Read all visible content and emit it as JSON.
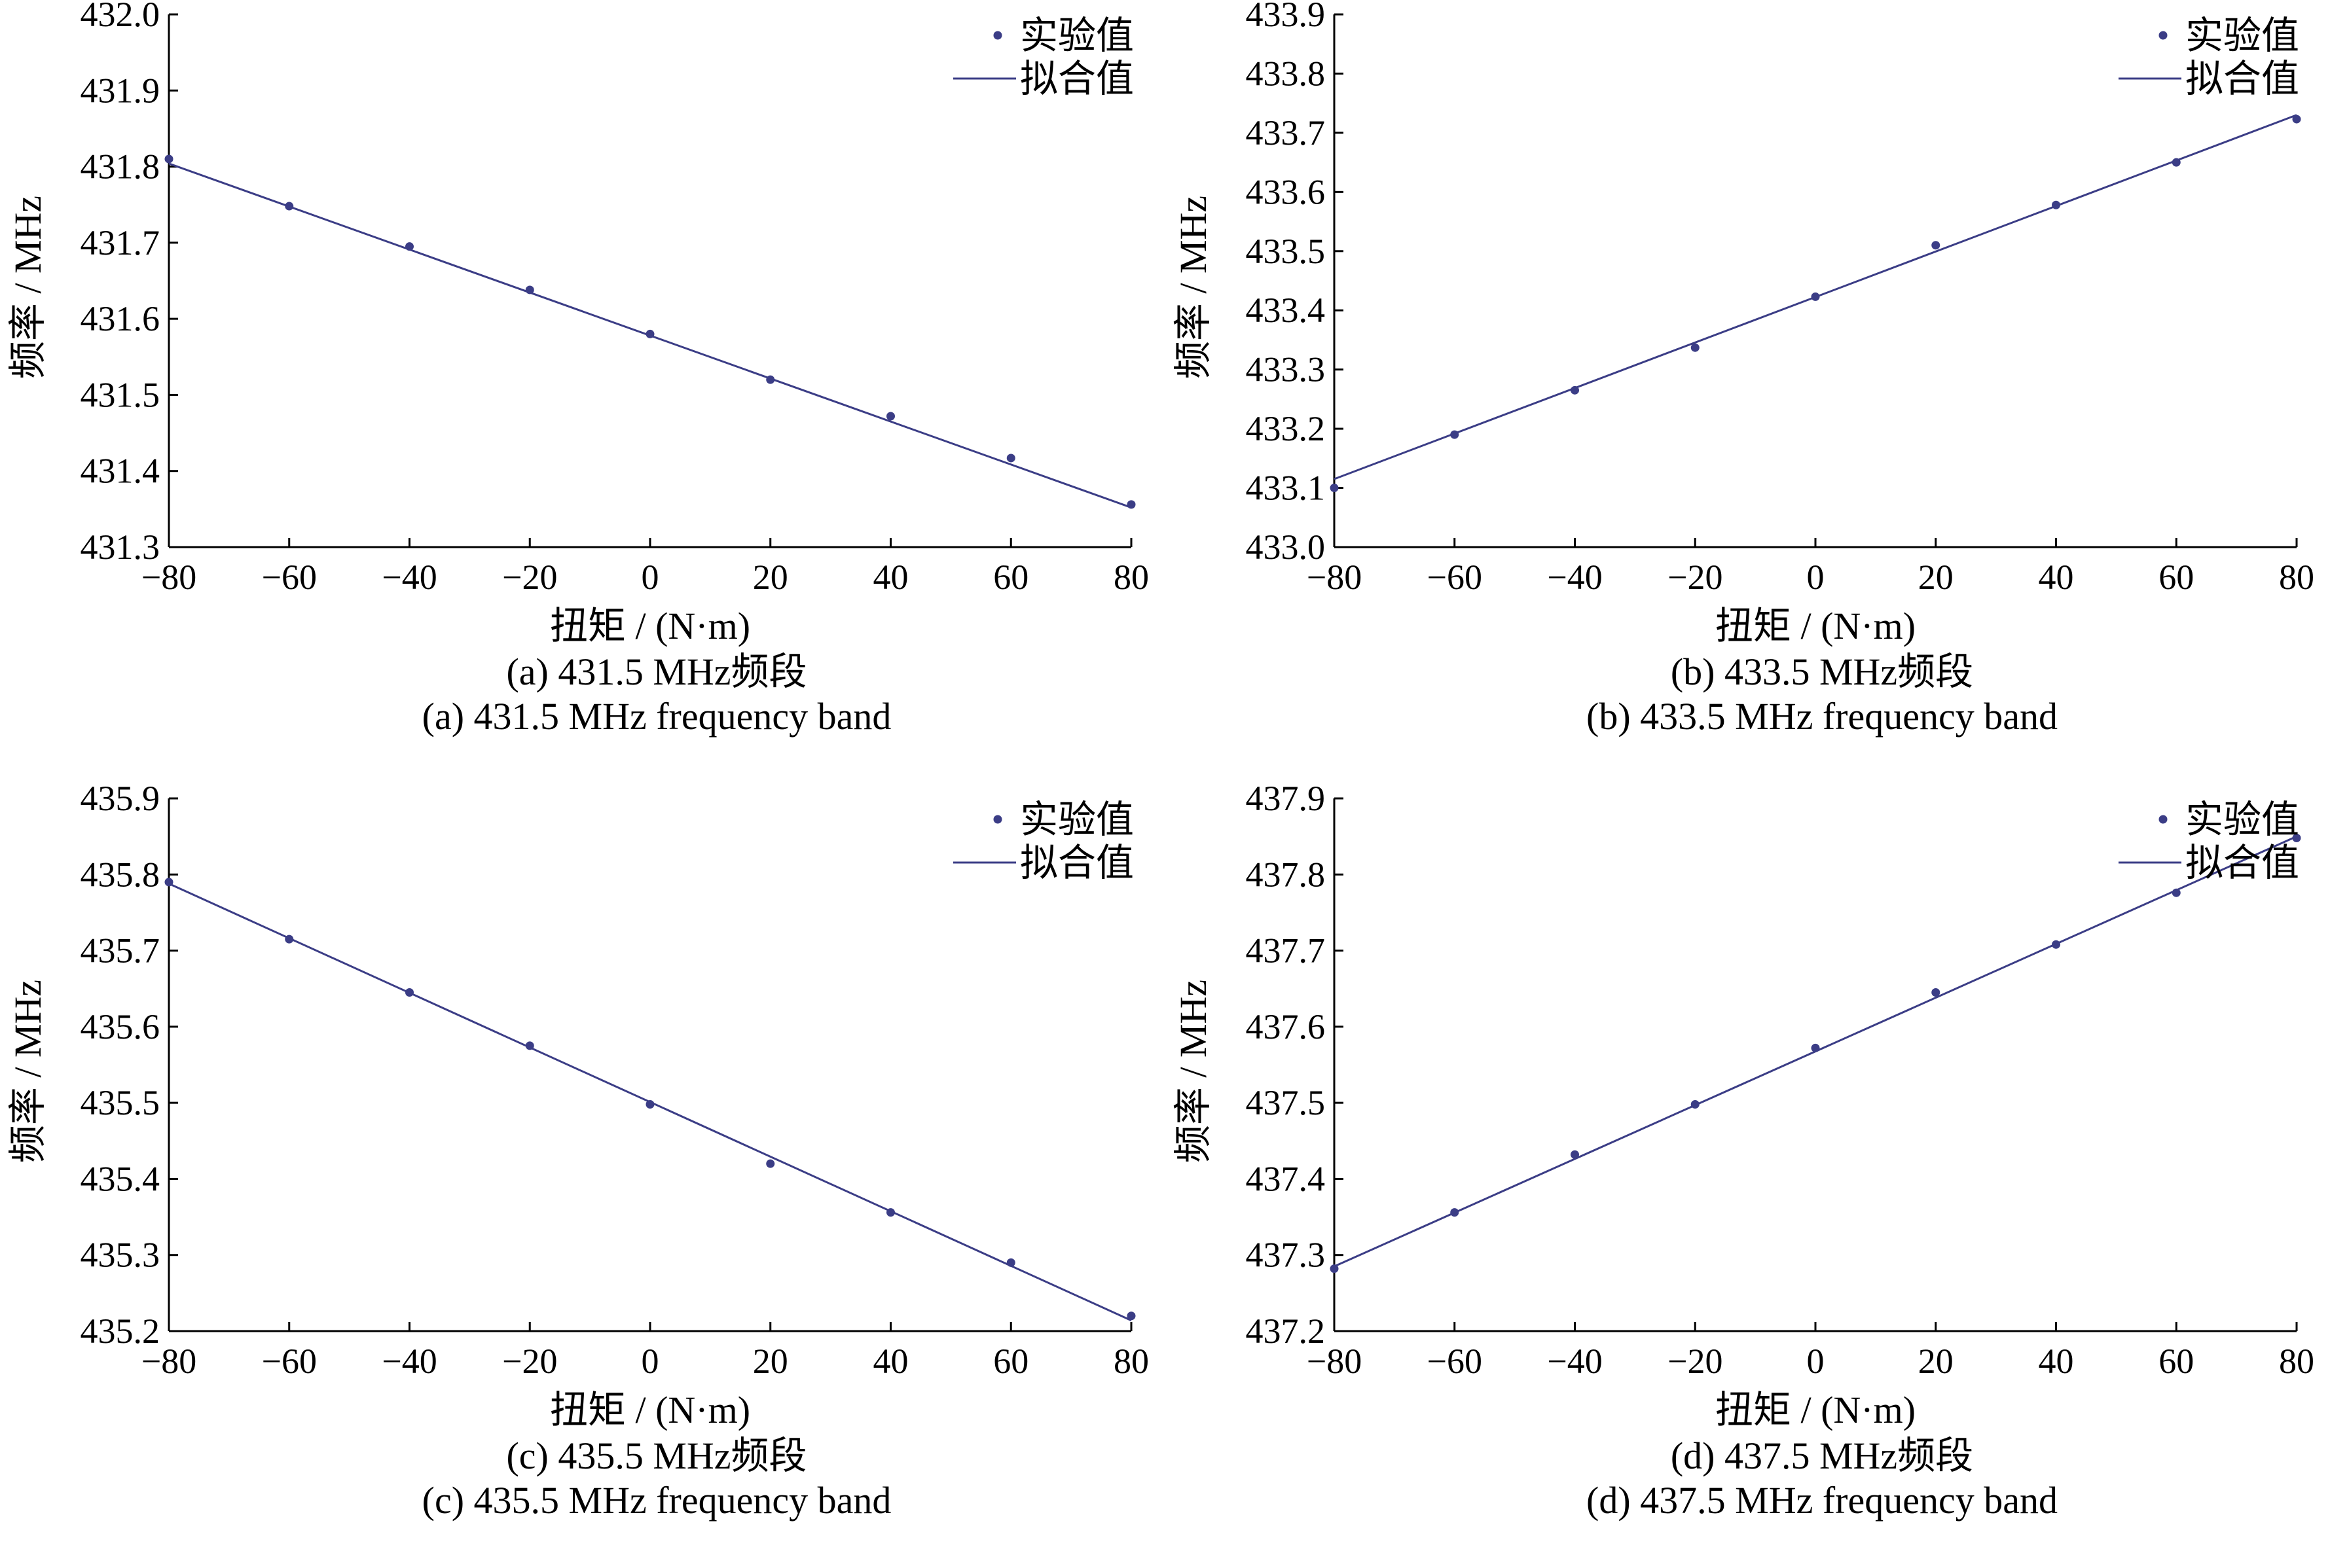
{
  "colors": {
    "series": "#3b3d86",
    "axis": "#000000"
  },
  "chart_data": [
    {
      "type": "scatter",
      "panel": "a",
      "xlabel": "扭矩 / (N·m)",
      "ylabel": "频率 / MHz",
      "caption_cn": "(a) 431.5 MHz频段",
      "caption_en": "(a) 431.5 MHz frequency band",
      "xlim": [
        -80,
        80
      ],
      "ylim": [
        431.3,
        432.0
      ],
      "xticks": [
        "−80",
        "−60",
        "−40",
        "−20",
        "0",
        "20",
        "40",
        "60",
        "80"
      ],
      "yticks": [
        "431.3",
        "431.4",
        "431.5",
        "431.6",
        "431.7",
        "431.8",
        "431.9",
        "432.0"
      ],
      "legend": {
        "position": "top-right",
        "points_label": "实验值",
        "fit_label": "拟合值"
      },
      "series": [
        {
          "name": "实验值",
          "kind": "points",
          "x": [
            -80,
            -60,
            -40,
            -20,
            0,
            20,
            40,
            60,
            80
          ],
          "y": [
            431.81,
            431.748,
            431.695,
            431.638,
            431.58,
            431.52,
            431.472,
            431.417,
            431.356
          ]
        },
        {
          "name": "拟合值",
          "kind": "line",
          "x": [
            -80,
            80
          ],
          "y": [
            431.804,
            431.352
          ]
        }
      ]
    },
    {
      "type": "scatter",
      "panel": "b",
      "xlabel": "扭矩 / (N·m)",
      "ylabel": "频率 / MHz",
      "caption_cn": "(b) 433.5 MHz频段",
      "caption_en": "(b) 433.5 MHz frequency band",
      "xlim": [
        -80,
        80
      ],
      "ylim": [
        433.0,
        433.9
      ],
      "xticks": [
        "−80",
        "−60",
        "−40",
        "−20",
        "0",
        "20",
        "40",
        "60",
        "80"
      ],
      "yticks": [
        "433.0",
        "433.1",
        "433.2",
        "433.3",
        "433.4",
        "433.5",
        "433.6",
        "433.7",
        "433.8",
        "433.9"
      ],
      "legend": {
        "position": "top-right",
        "points_label": "实验值",
        "fit_label": "拟合值"
      },
      "series": [
        {
          "name": "实验值",
          "kind": "points",
          "x": [
            -80,
            -60,
            -40,
            -20,
            0,
            20,
            40,
            60,
            80
          ],
          "y": [
            433.1,
            433.19,
            433.265,
            433.337,
            433.423,
            433.51,
            433.578,
            433.65,
            433.723
          ]
        },
        {
          "name": "拟合值",
          "kind": "line",
          "x": [
            -80,
            80
          ],
          "y": [
            433.115,
            433.73
          ]
        }
      ]
    },
    {
      "type": "scatter",
      "panel": "c",
      "xlabel": "扭矩 / (N·m)",
      "ylabel": "频率 / MHz",
      "caption_cn": "(c) 435.5 MHz频段",
      "caption_en": "(c) 435.5 MHz frequency band",
      "xlim": [
        -80,
        80
      ],
      "ylim": [
        435.2,
        435.9
      ],
      "xticks": [
        "−80",
        "−60",
        "−40",
        "−20",
        "0",
        "20",
        "40",
        "60",
        "80"
      ],
      "yticks": [
        "435.2",
        "435.3",
        "435.4",
        "435.5",
        "435.6",
        "435.7",
        "435.8",
        "435.9"
      ],
      "legend": {
        "position": "top-right",
        "points_label": "实验值",
        "fit_label": "拟合值"
      },
      "series": [
        {
          "name": "实验值",
          "kind": "points",
          "x": [
            -80,
            -60,
            -40,
            -20,
            0,
            20,
            40,
            60,
            80
          ],
          "y": [
            435.79,
            435.715,
            435.645,
            435.575,
            435.498,
            435.42,
            435.356,
            435.29,
            435.22
          ]
        },
        {
          "name": "拟合值",
          "kind": "line",
          "x": [
            -80,
            80
          ],
          "y": [
            435.788,
            435.214
          ]
        }
      ]
    },
    {
      "type": "scatter",
      "panel": "d",
      "xlabel": "扭矩 / (N·m)",
      "ylabel": "频率 / MHz",
      "caption_cn": "(d) 437.5 MHz频段",
      "caption_en": "(d) 437.5 MHz frequency band",
      "xlim": [
        -80,
        80
      ],
      "ylim": [
        437.2,
        437.9
      ],
      "xticks": [
        "−80",
        "−60",
        "−40",
        "−20",
        "0",
        "20",
        "40",
        "60",
        "80"
      ],
      "yticks": [
        "437.2",
        "437.3",
        "437.4",
        "437.5",
        "437.6",
        "437.7",
        "437.8",
        "437.9"
      ],
      "legend": {
        "position": "top-right",
        "points_label": "实验值",
        "fit_label": "拟合值"
      },
      "series": [
        {
          "name": "实验值",
          "kind": "points",
          "x": [
            -80,
            -60,
            -40,
            -20,
            0,
            20,
            40,
            60,
            80
          ],
          "y": [
            437.282,
            437.356,
            437.432,
            437.498,
            437.572,
            437.645,
            437.708,
            437.776,
            437.848
          ]
        },
        {
          "name": "拟合值",
          "kind": "line",
          "x": [
            -80,
            80
          ],
          "y": [
            437.285,
            437.85
          ]
        }
      ]
    }
  ]
}
